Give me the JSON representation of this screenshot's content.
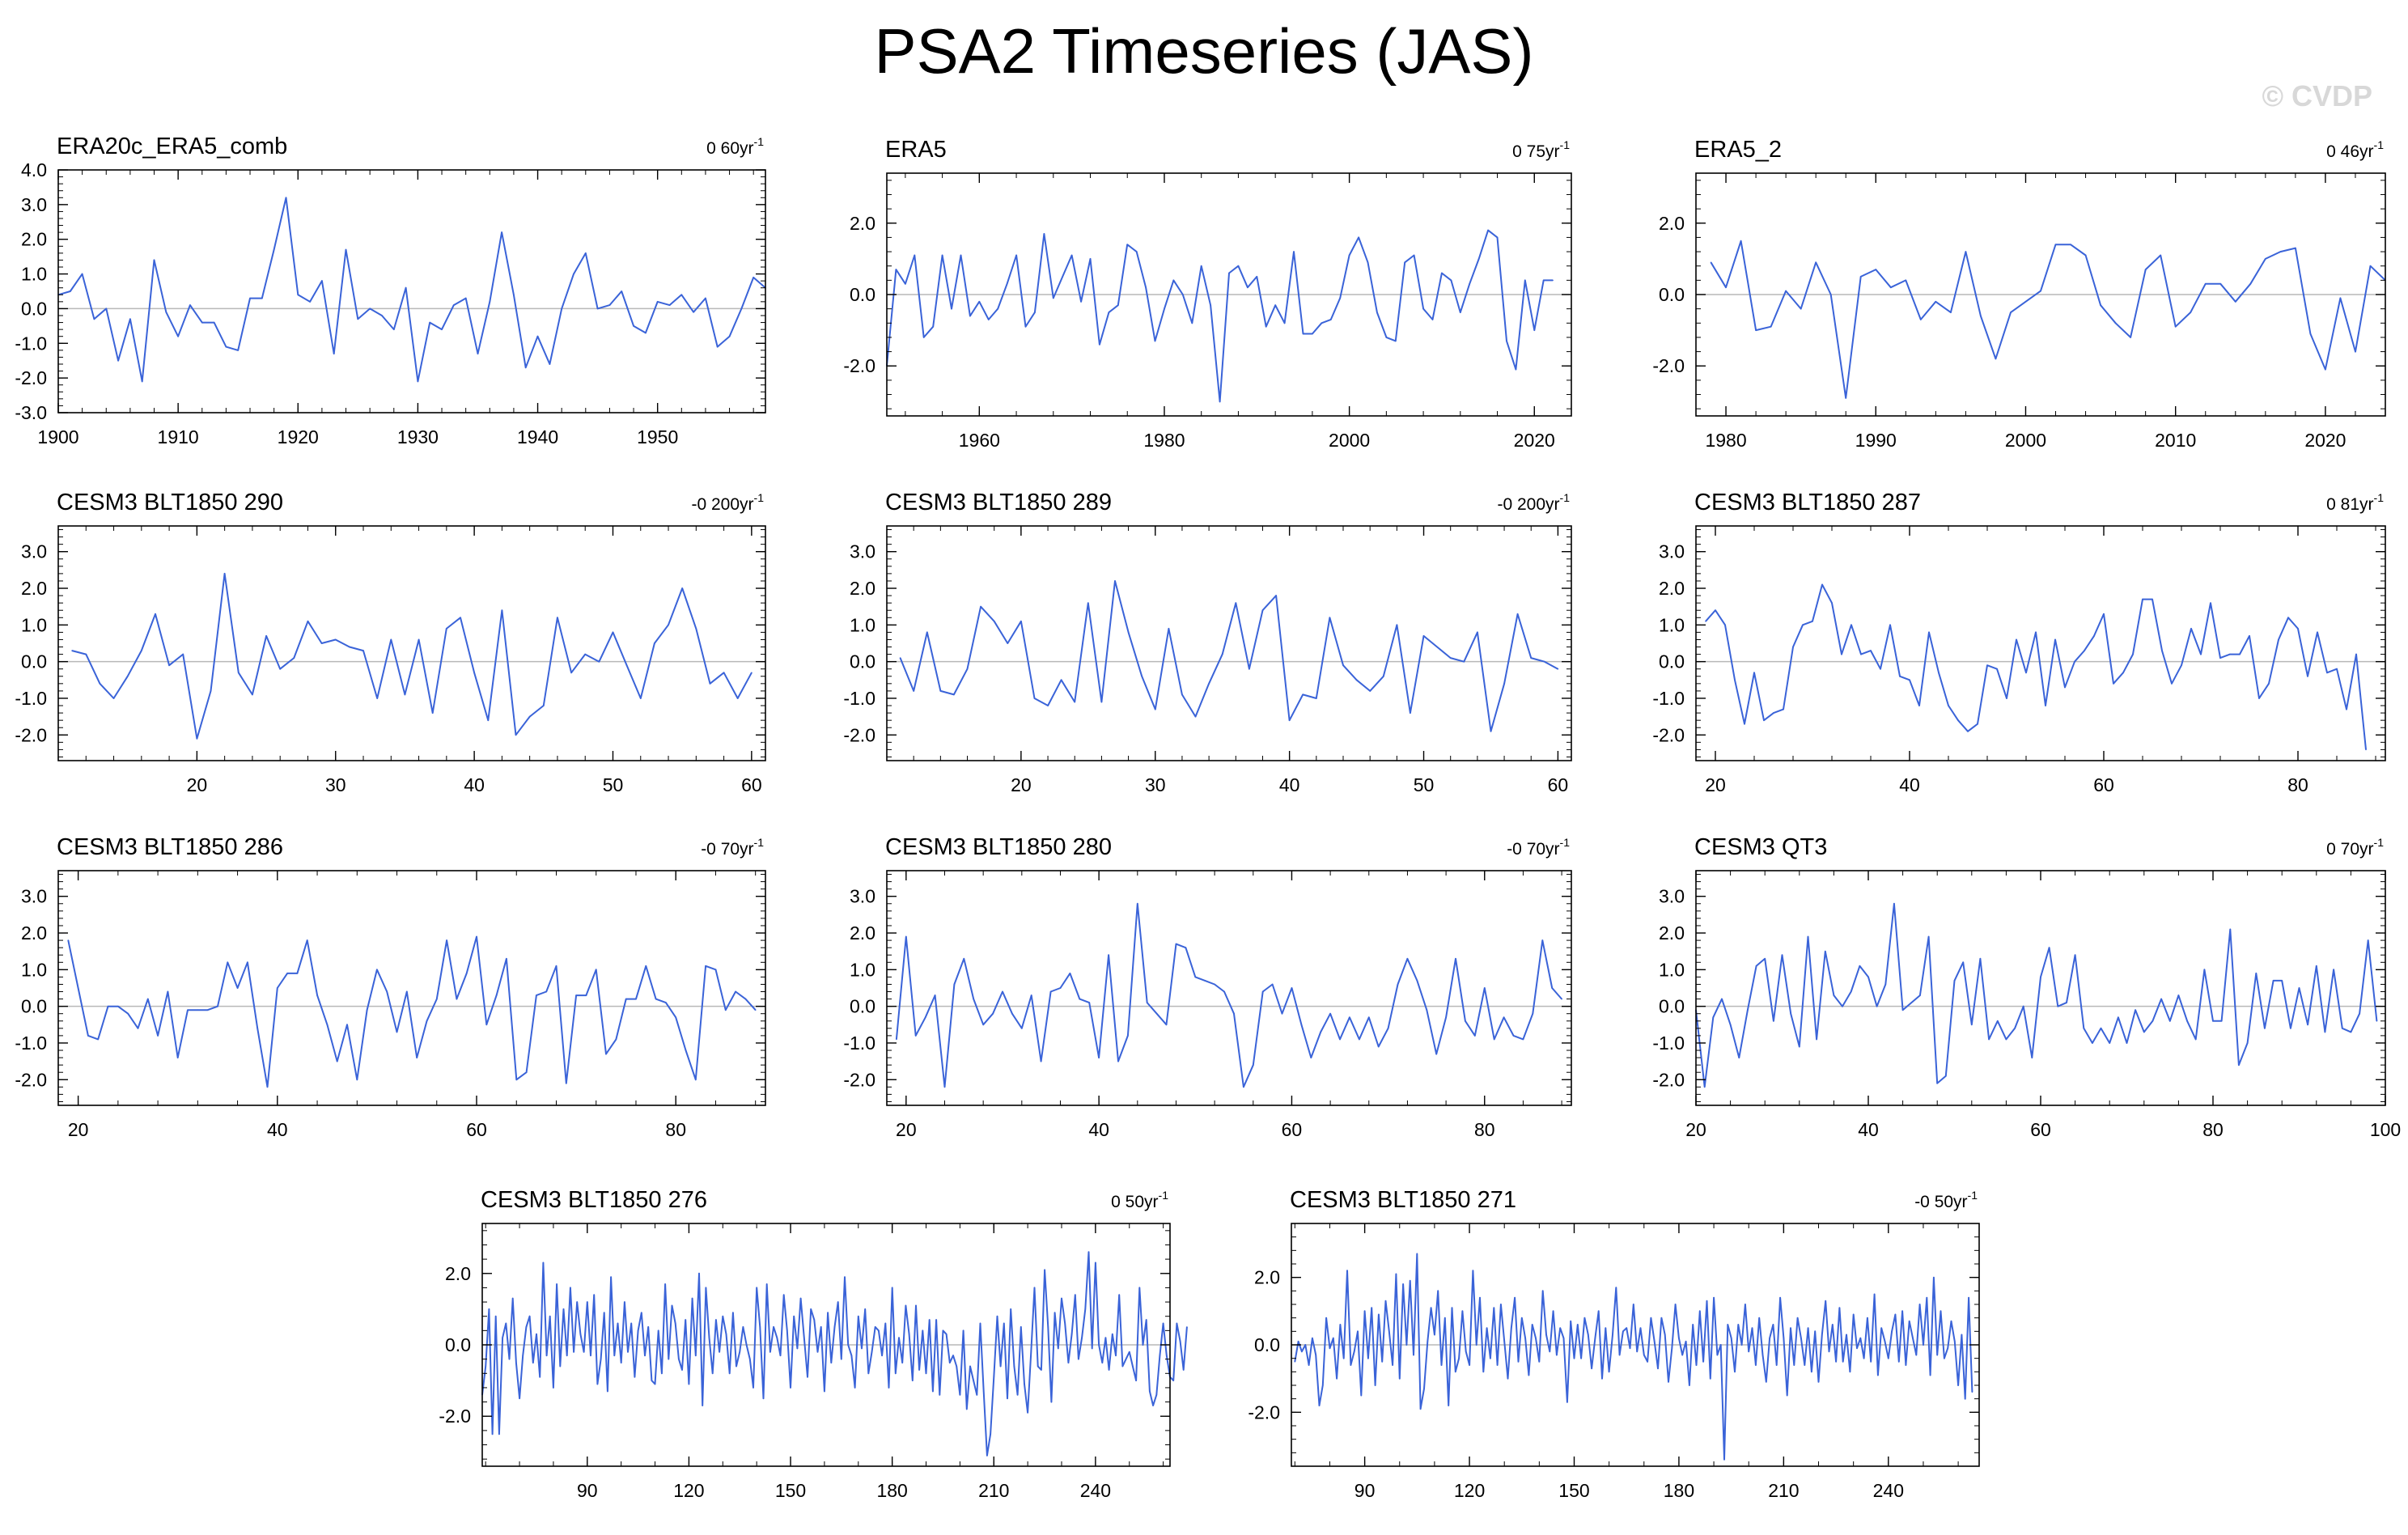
{
  "figure_title": "PSA2 Timeseries (JAS)",
  "watermark": "© CVDP",
  "colors": {
    "series": "#3a63d8",
    "series_secondary": "#999999",
    "zero_line": "#b8b8b8",
    "frame": "#000000"
  },
  "chart_data": [
    {
      "type": "line",
      "title": "ERA20c_ERA5_comb",
      "trend": "0 60yr",
      "trend_unit": "-1",
      "xlim": [
        1900,
        1959
      ],
      "ylim": [
        -3.0,
        4.0
      ],
      "xticks": [
        1900,
        1910,
        1920,
        1930,
        1940,
        1950
      ],
      "yticks": [
        -3.0,
        -2.0,
        -1.0,
        0.0,
        1.0,
        2.0,
        3.0,
        4.0
      ],
      "ytick_labels": [
        "-3.0",
        "-2.0",
        "-1.0",
        "0.0",
        "1.0",
        "2.0",
        "3.0",
        "4.0"
      ],
      "x_start": 1900,
      "values": [
        0.4,
        0.5,
        1.0,
        -0.3,
        0.0,
        -1.5,
        -0.3,
        -2.1,
        1.4,
        -0.1,
        -0.8,
        0.1,
        -0.4,
        -0.4,
        -1.1,
        -1.2,
        0.3,
        0.3,
        1.7,
        3.2,
        0.4,
        0.2,
        0.8,
        -1.3,
        1.7,
        -0.3,
        0.0,
        -0.2,
        -0.6,
        0.6,
        -2.1,
        -0.4,
        -0.6,
        0.1,
        0.3,
        -1.3,
        0.2,
        2.2,
        0.4,
        -1.7,
        -0.8,
        -1.6,
        0.0,
        1.0,
        1.6,
        0.0,
        0.1,
        0.5,
        -0.5,
        -0.7,
        0.2,
        0.1,
        0.4,
        -0.1,
        0.3,
        -1.1,
        -0.8,
        0.0,
        0.9,
        0.6
      ]
    },
    {
      "type": "line",
      "title": "ERA5",
      "trend": "0 75yr",
      "trend_unit": "-1",
      "xlim": [
        1950,
        2024
      ],
      "ylim": [
        -3.4,
        3.4
      ],
      "xticks": [
        1960,
        1980,
        2000,
        2020
      ],
      "yticks": [
        -2.0,
        0.0,
        2.0
      ],
      "ytick_labels": [
        "-2.0",
        "0.0",
        "2.0"
      ],
      "x_start": 1950,
      "values": [
        -2.0,
        0.7,
        0.3,
        1.1,
        -1.2,
        -0.9,
        1.1,
        -0.4,
        1.1,
        -0.6,
        -0.2,
        -0.7,
        -0.4,
        0.3,
        1.1,
        -0.9,
        -0.5,
        1.7,
        -0.1,
        0.5,
        1.1,
        -0.2,
        1.0,
        -1.4,
        -0.5,
        -0.3,
        1.4,
        1.2,
        0.2,
        -1.3,
        -0.4,
        0.4,
        0.0,
        -0.8,
        0.8,
        -0.3,
        -3.0,
        0.6,
        0.8,
        0.2,
        0.5,
        -0.9,
        -0.3,
        -0.8,
        1.2,
        -1.1,
        -1.1,
        -0.8,
        -0.7,
        -0.1,
        1.1,
        1.6,
        0.9,
        -0.5,
        -1.2,
        -1.3,
        0.9,
        1.1,
        -0.4,
        -0.7,
        0.6,
        0.4,
        -0.5,
        0.3,
        1.0,
        1.8,
        1.6,
        -1.3,
        -2.1,
        0.4,
        -1.0,
        0.4,
        0.4
      ]
    },
    {
      "type": "line",
      "title": "ERA5_2",
      "trend": "0 46yr",
      "trend_unit": "-1",
      "xlim": [
        1978,
        2024
      ],
      "ylim": [
        -3.4,
        3.4
      ],
      "xticks": [
        1980,
        1990,
        2000,
        2010,
        2020
      ],
      "yticks": [
        -2.0,
        0.0,
        2.0
      ],
      "ytick_labels": [
        "-2.0",
        "0.0",
        "2.0"
      ],
      "x_start": 1979,
      "values": [
        0.9,
        0.2,
        1.5,
        -1.0,
        -0.9,
        0.1,
        -0.4,
        0.9,
        0.0,
        -2.9,
        0.5,
        0.7,
        0.2,
        0.4,
        -0.7,
        -0.2,
        -0.5,
        1.2,
        -0.6,
        -1.8,
        -0.5,
        -0.2,
        0.1,
        1.4,
        1.4,
        1.1,
        -0.3,
        -0.8,
        -1.2,
        0.7,
        1.1,
        -0.9,
        -0.5,
        0.3,
        0.3,
        -0.2,
        0.3,
        1.0,
        1.2,
        1.3,
        -1.1,
        -2.1,
        -0.1,
        -1.6,
        0.8,
        0.4
      ]
    },
    {
      "type": "line",
      "title": "CESM3 BLT1850 290",
      "trend": "-0 200yr",
      "trend_unit": "-1",
      "xlim": [
        10,
        61
      ],
      "ylim": [
        -2.7,
        3.7
      ],
      "xticks": [
        20,
        30,
        40,
        50,
        60
      ],
      "yticks": [
        -2.0,
        -1.0,
        0.0,
        1.0,
        2.0,
        3.0
      ],
      "ytick_labels": [
        "-2.0",
        "-1.0",
        "0.0",
        "1.0",
        "2.0",
        "3.0"
      ],
      "x_start": 11,
      "values": [
        0.3,
        0.2,
        -0.6,
        -1.0,
        -0.4,
        0.3,
        1.3,
        -0.1,
        0.2,
        -2.1,
        -0.8,
        2.4,
        -0.3,
        -0.9,
        0.7,
        -0.2,
        0.1,
        1.1,
        0.5,
        0.6,
        0.4,
        0.3,
        -1.0,
        0.6,
        -0.9,
        0.6,
        -1.4,
        0.9,
        1.2,
        -0.3,
        -1.6,
        1.4,
        -2.0,
        -1.5,
        -1.2,
        1.2,
        -0.3,
        0.2,
        0.0,
        0.8,
        -0.1,
        -1.0,
        0.5,
        1.0,
        2.0,
        0.9,
        -0.6,
        -0.3,
        -1.0,
        -0.3
      ]
    },
    {
      "type": "line",
      "title": "CESM3 BLT1850 289",
      "trend": "-0 200yr",
      "trend_unit": "-1",
      "xlim": [
        10,
        61
      ],
      "ylim": [
        -2.7,
        3.7
      ],
      "xticks": [
        20,
        30,
        40,
        50,
        60
      ],
      "yticks": [
        -2.0,
        -1.0,
        0.0,
        1.0,
        2.0,
        3.0
      ],
      "ytick_labels": [
        "-2.0",
        "-1.0",
        "0.0",
        "1.0",
        "2.0",
        "3.0"
      ],
      "x_start": 11,
      "values": [
        0.1,
        -0.8,
        0.8,
        -0.8,
        -0.9,
        -0.2,
        1.5,
        1.1,
        0.5,
        1.1,
        -1.0,
        -1.2,
        -0.5,
        -1.1,
        1.6,
        -1.1,
        2.2,
        0.8,
        -0.4,
        -1.3,
        0.9,
        -0.9,
        -1.5,
        -0.6,
        0.2,
        1.6,
        -0.2,
        1.4,
        1.8,
        -1.6,
        -0.9,
        -1.0,
        1.2,
        -0.1,
        -0.5,
        -0.8,
        -0.4,
        1.0,
        -1.4,
        0.7,
        0.4,
        0.1,
        0.0,
        0.8,
        -1.9,
        -0.6,
        1.3,
        0.1,
        0.0,
        -0.2
      ]
    },
    {
      "type": "line",
      "title": "CESM3 BLT1850 287",
      "trend": "0 81yr",
      "trend_unit": "-1",
      "xlim": [
        18,
        89
      ],
      "ylim": [
        -2.7,
        3.7
      ],
      "xticks": [
        20,
        40,
        60,
        80
      ],
      "yticks": [
        -2.0,
        -1.0,
        0.0,
        1.0,
        2.0,
        3.0
      ],
      "ytick_labels": [
        "-2.0",
        "-1.0",
        "0.0",
        "1.0",
        "2.0",
        "3.0"
      ],
      "x_start": 19,
      "values": [
        1.1,
        1.4,
        1.0,
        -0.5,
        -1.7,
        -0.3,
        -1.6,
        -1.4,
        -1.3,
        0.4,
        1.0,
        1.1,
        2.1,
        1.6,
        0.2,
        1.0,
        0.2,
        0.3,
        -0.2,
        1.0,
        -0.4,
        -0.5,
        -1.2,
        0.8,
        -0.3,
        -1.2,
        -1.6,
        -1.9,
        -1.7,
        -0.1,
        -0.2,
        -1.0,
        0.6,
        -0.3,
        0.8,
        -1.2,
        0.6,
        -0.7,
        0.0,
        0.3,
        0.7,
        1.3,
        -0.6,
        -0.3,
        0.2,
        1.7,
        1.7,
        0.3,
        -0.6,
        -0.1,
        0.9,
        0.2,
        1.6,
        0.1,
        0.2,
        0.2,
        0.7,
        -1.0,
        -0.6,
        0.6,
        1.2,
        0.9,
        -0.4,
        0.8,
        -0.3,
        -0.2,
        -1.3,
        0.2,
        -2.4
      ]
    },
    {
      "type": "line",
      "title": "CESM3 BLT1850 286",
      "trend": "-0 70yr",
      "trend_unit": "-1",
      "xlim": [
        18,
        89
      ],
      "ylim": [
        -2.7,
        3.7
      ],
      "xticks": [
        20,
        40,
        60,
        80
      ],
      "yticks": [
        -2.0,
        -1.0,
        0.0,
        1.0,
        2.0,
        3.0
      ],
      "ytick_labels": [
        "-2.0",
        "-1.0",
        "0.0",
        "1.0",
        "2.0",
        "3.0"
      ],
      "x_start": 19,
      "values": [
        1.8,
        0.5,
        -0.8,
        -0.9,
        0.0,
        0.0,
        -0.2,
        -0.6,
        0.2,
        -0.8,
        0.4,
        -1.4,
        -0.1,
        -0.1,
        -0.1,
        0.0,
        1.2,
        0.5,
        1.2,
        -0.6,
        -2.2,
        0.5,
        0.9,
        0.9,
        1.8,
        0.3,
        -0.5,
        -1.5,
        -0.5,
        -2.0,
        -0.1,
        1.0,
        0.4,
        -0.7,
        0.4,
        -1.4,
        -0.4,
        0.2,
        1.8,
        0.2,
        0.9,
        1.9,
        -0.5,
        0.3,
        1.3,
        -2.0,
        -1.8,
        0.3,
        0.4,
        1.1,
        -2.1,
        0.3,
        0.3,
        1.0,
        -1.3,
        -0.9,
        0.2,
        0.2,
        1.1,
        0.2,
        0.1,
        -0.3,
        -1.2,
        -2.0,
        1.1,
        1.0,
        -0.1,
        0.4,
        0.2,
        -0.1
      ]
    },
    {
      "type": "line",
      "title": "CESM3 BLT1850 280",
      "trend": "-0 70yr",
      "trend_unit": "-1",
      "xlim": [
        18,
        89
      ],
      "ylim": [
        -2.7,
        3.7
      ],
      "xticks": [
        20,
        40,
        60,
        80
      ],
      "yticks": [
        -2.0,
        -1.0,
        0.0,
        1.0,
        2.0,
        3.0
      ],
      "ytick_labels": [
        "-2.0",
        "-1.0",
        "0.0",
        "1.0",
        "2.0",
        "3.0"
      ],
      "x_start": 19,
      "values": [
        -0.9,
        1.9,
        -0.8,
        -0.3,
        0.3,
        -2.2,
        0.6,
        1.3,
        0.2,
        -0.5,
        -0.2,
        0.4,
        -0.2,
        -0.6,
        0.3,
        -1.5,
        0.4,
        0.5,
        0.9,
        0.2,
        0.1,
        -1.4,
        1.4,
        -1.5,
        -0.8,
        2.8,
        0.1,
        -0.2,
        -0.5,
        1.7,
        1.6,
        0.8,
        0.7,
        0.6,
        0.4,
        -0.2,
        -2.2,
        -1.6,
        0.4,
        0.6,
        -0.2,
        0.5,
        -0.5,
        -1.4,
        -0.7,
        -0.2,
        -0.9,
        -0.3,
        -0.9,
        -0.3,
        -1.1,
        -0.6,
        0.6,
        1.3,
        0.7,
        -0.1,
        -1.3,
        -0.3,
        1.3,
        -0.4,
        -0.8,
        0.5,
        -0.9,
        -0.3,
        -0.8,
        -0.9,
        -0.2,
        1.8,
        0.5,
        0.2
      ]
    },
    {
      "type": "line",
      "title": "CESM3 QT3",
      "trend": "0 70yr",
      "trend_unit": "-1",
      "xlim": [
        20,
        100
      ],
      "ylim": [
        -2.7,
        3.7
      ],
      "xticks": [
        20,
        40,
        60,
        80,
        100
      ],
      "yticks": [
        -2.0,
        -1.0,
        0.0,
        1.0,
        2.0,
        3.0
      ],
      "ytick_labels": [
        "-2.0",
        "-1.0",
        "0.0",
        "1.0",
        "2.0",
        "3.0"
      ],
      "x_start": 20,
      "values": [
        -0.1,
        -2.2,
        -0.3,
        0.2,
        -0.5,
        -1.4,
        -0.1,
        1.1,
        1.3,
        -0.4,
        1.4,
        -0.2,
        -1.1,
        1.9,
        -0.9,
        1.5,
        0.3,
        0.0,
        0.4,
        1.1,
        0.8,
        0.0,
        0.6,
        2.8,
        -0.1,
        0.1,
        0.3,
        1.9,
        -2.1,
        -1.9,
        0.7,
        1.2,
        -0.5,
        1.3,
        -0.9,
        -0.4,
        -0.9,
        -0.6,
        0.0,
        -1.4,
        0.8,
        1.6,
        0.0,
        0.1,
        1.4,
        -0.6,
        -1.0,
        -0.6,
        -1.0,
        -0.3,
        -1.0,
        -0.1,
        -0.7,
        -0.4,
        0.2,
        -0.4,
        0.3,
        -0.4,
        -0.9,
        1.0,
        -0.4,
        -0.4,
        2.1,
        -1.6,
        -1.0,
        0.9,
        -0.6,
        0.7,
        0.7,
        -0.6,
        0.5,
        -0.5,
        1.1,
        -0.7,
        1.0,
        -0.6,
        -0.7,
        -0.2,
        1.8,
        -0.4
      ]
    },
    {
      "type": "line",
      "title": "CESM3 BLT1850 276",
      "trend": "0 50yr",
      "trend_unit": "-1",
      "xlim": [
        59,
        262
      ],
      "ylim": [
        -3.4,
        3.4
      ],
      "xticks": [
        90,
        120,
        150,
        180,
        210,
        240
      ],
      "yticks": [
        -2.0,
        0.0,
        2.0
      ],
      "ytick_labels": [
        "-2.0",
        "0.0",
        "2.0"
      ],
      "x_start": 59,
      "values": [
        -1.4,
        -0.6,
        1.0,
        -2.5,
        0.8,
        -2.5,
        0.2,
        0.6,
        -0.4,
        1.3,
        -0.5,
        -1.5,
        -0.3,
        0.5,
        0.8,
        -0.5,
        0.3,
        -0.9,
        2.3,
        -0.3,
        0.8,
        -1.2,
        1.7,
        -0.6,
        1.0,
        -0.3,
        1.6,
        -0.2,
        1.2,
        0.3,
        -0.2,
        1.2,
        -0.3,
        1.4,
        -1.1,
        -0.4,
        0.9,
        -1.3,
        1.9,
        -0.3,
        0.6,
        -0.5,
        1.2,
        -0.2,
        0.6,
        -0.9,
        0.4,
        0.9,
        -0.3,
        0.5,
        -1.0,
        -1.1,
        0.4,
        -0.8,
        1.7,
        -0.4,
        1.1,
        0.6,
        -0.4,
        -0.7,
        0.7,
        -1.1,
        1.3,
        -0.3,
        2.0,
        -1.7,
        1.6,
        0.2,
        -0.8,
        0.7,
        -0.2,
        0.8,
        0.3,
        -0.8,
        0.9,
        -0.6,
        -0.2,
        0.5,
        0.0,
        -0.4,
        -1.2,
        1.6,
        0.5,
        -1.5,
        1.7,
        -0.2,
        0.5,
        0.2,
        -0.3,
        1.4,
        0.4,
        -1.2,
        0.8,
        -0.1,
        1.3,
        0.2,
        -0.9,
        1.0,
        0.7,
        -0.2,
        0.5,
        -1.3,
        0.9,
        -0.5,
        0.5,
        1.2,
        -0.4,
        1.9,
        0.0,
        -0.3,
        -1.2,
        0.8,
        -0.1,
        1.0,
        -0.8,
        -0.2,
        0.5,
        0.4,
        -0.3,
        0.6,
        -1.2,
        1.6,
        -0.8,
        0.2,
        -0.5,
        1.1,
        0.3,
        -1.0,
        1.1,
        -0.7,
        0.4,
        -0.8,
        0.7,
        -1.3,
        0.7,
        -1.4,
        0.4,
        0.3,
        -0.5,
        -0.3,
        -0.6,
        -1.4,
        0.4,
        -1.8,
        -0.6,
        -1.0,
        -1.4,
        0.6,
        -1.3,
        -3.1,
        -2.5,
        -0.9,
        0.8,
        -0.6,
        0.6,
        -1.5,
        1.0,
        -0.6,
        -1.4,
        0.5,
        -1.1,
        -1.9,
        -0.2,
        1.6,
        -0.6,
        -0.7,
        2.1,
        0.5,
        -1.6,
        0.9,
        -0.1,
        1.3,
        0.6,
        -0.5,
        0.3,
        1.4,
        -0.4,
        0.2,
        1.0,
        2.6,
        -0.1,
        2.3,
        0.0,
        -0.5,
        0.2,
        -0.7,
        0.3,
        -0.3,
        1.4,
        -0.6,
        -0.4,
        -0.2,
        -0.6,
        -1.0,
        1.6,
        0.0,
        0.7,
        -1.3,
        -1.7,
        -1.4,
        -0.3,
        0.6,
        -0.3,
        -0.9,
        -1.0,
        0.6,
        0.1,
        -0.7,
        0.5
      ]
    },
    {
      "type": "line",
      "title": "CESM3 BLT1850 271",
      "trend": "-0 50yr",
      "trend_unit": "-1",
      "xlim": [
        69,
        266
      ],
      "ylim": [
        -3.6,
        3.6
      ],
      "xticks": [
        90,
        120,
        150,
        180,
        210,
        240
      ],
      "yticks": [
        -2.0,
        0.0,
        2.0
      ],
      "ytick_labels": [
        "-2.0",
        "0.0",
        "2.0"
      ],
      "x_start": 70,
      "values": [
        -0.5,
        0.1,
        -0.2,
        0.0,
        -0.6,
        0.2,
        -0.3,
        -1.8,
        -1.2,
        0.8,
        -0.1,
        0.2,
        -1.0,
        0.6,
        -0.4,
        2.2,
        -0.6,
        -0.2,
        0.4,
        -1.5,
        1.0,
        -0.4,
        1.1,
        -1.2,
        0.9,
        -0.5,
        1.3,
        0.4,
        -0.6,
        2.1,
        -1.0,
        1.8,
        0.0,
        1.9,
        -0.3,
        2.7,
        -1.9,
        -1.3,
        0.1,
        1.1,
        0.3,
        1.6,
        -0.6,
        0.8,
        -1.8,
        1.1,
        -0.8,
        -0.4,
        1.0,
        -0.2,
        -0.6,
        2.2,
        0.0,
        1.4,
        -0.8,
        0.5,
        -0.4,
        1.1,
        -0.6,
        1.2,
        0.1,
        -1.0,
        0.5,
        1.4,
        -0.5,
        0.8,
        0.2,
        -0.9,
        0.6,
        0.2,
        -0.5,
        1.6,
        0.3,
        -0.2,
        1.0,
        -0.3,
        0.5,
        0.2,
        -1.7,
        0.7,
        -0.4,
        0.6,
        -0.4,
        0.8,
        0.3,
        -0.7,
        0.2,
        1.0,
        -1.0,
        0.5,
        -0.8,
        0.3,
        1.7,
        -0.3,
        0.4,
        0.5,
        -0.1,
        1.2,
        -0.2,
        0.5,
        -0.3,
        -0.5,
        0.8,
        0.1,
        -0.7,
        0.8,
        0.3,
        -1.1,
        -0.1,
        1.2,
        0.2,
        -0.3,
        0.1,
        -1.2,
        0.6,
        -0.6,
        1.0,
        -0.5,
        1.3,
        -1.0,
        1.4,
        -0.3,
        0.0,
        -3.4,
        0.6,
        0.2,
        -0.8,
        0.6,
        0.0,
        1.2,
        -0.2,
        0.5,
        -0.6,
        0.8,
        -0.3,
        -1.1,
        0.2,
        0.6,
        -0.6,
        1.4,
        0.2,
        -1.5,
        0.5,
        -0.6,
        0.8,
        0.2,
        -0.6,
        0.5,
        -0.8,
        0.4,
        -1.1,
        0.3,
        1.3,
        -0.2,
        0.6,
        -0.5,
        1.1,
        -0.5,
        0.3,
        -0.8,
        0.9,
        -0.1,
        0.2,
        -0.4,
        0.8,
        -0.5,
        1.5,
        -0.9,
        0.5,
        0.1,
        -0.4,
        0.4,
        0.9,
        -0.5,
        1.0,
        -0.6,
        0.7,
        0.2,
        -0.3,
        1.2,
        0.0,
        1.4,
        -0.9,
        2.0,
        -0.3,
        1.0,
        -0.4,
        -0.1,
        0.7,
        0.1,
        -1.2,
        0.3,
        -1.6,
        1.4,
        -1.4
      ]
    }
  ]
}
